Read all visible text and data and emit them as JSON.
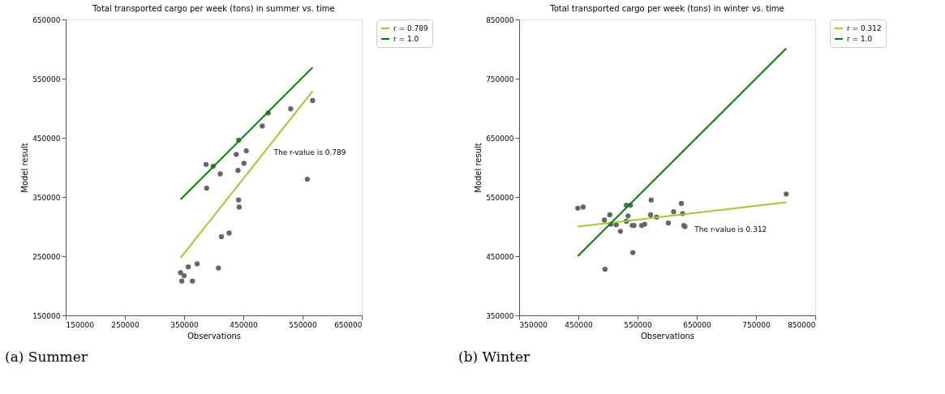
{
  "chart_data": [
    {
      "type": "scatter",
      "title": "Total transported cargo per week (tons) in summer vs. time",
      "xlabel": "Observations",
      "ylabel": "Model result",
      "xlim": [
        150000,
        650000
      ],
      "xticks": [
        150000,
        250000,
        350000,
        450000,
        550000,
        650000
      ],
      "ylim": [
        150000,
        650000
      ],
      "yticks": [
        150000,
        250000,
        350000,
        450000,
        550000,
        650000
      ],
      "grid": false,
      "legend": "right",
      "series": [
        {
          "marker": "circle",
          "color": "#666666",
          "x": [
            344000,
            350000,
            346000,
            357000,
            364000,
            372000,
            408000,
            413000,
            426000,
            387000,
            399000,
            388000,
            411000,
            438000,
            442000,
            455000,
            451000,
            441000,
            442000,
            443000,
            482000,
            492000,
            530000,
            567000,
            558000
          ],
          "values": [
            222000,
            217000,
            208000,
            232000,
            208000,
            237000,
            230000,
            283000,
            289000,
            405000,
            402000,
            365000,
            389000,
            422000,
            446000,
            428000,
            407000,
            395000,
            345000,
            333000,
            470000,
            492000,
            499000,
            513000,
            380000
          ]
        },
        {
          "type": "line",
          "name": "r = 0.789",
          "color": "#9acd32",
          "x": [
            344000,
            567000
          ],
          "values": [
            247000,
            529000
          ]
        },
        {
          "type": "line",
          "name": "r = 1.0",
          "color": "#008000",
          "x": [
            344000,
            567000
          ],
          "values": [
            346000,
            569000
          ]
        }
      ],
      "annotations": [
        "The r-value is 0.789",
        "(a) Summer"
      ]
    },
    {
      "type": "scatter",
      "title": "Total transported cargo per week (tons) in winter vs. time",
      "xlabel": "Observations",
      "ylabel": "Model result",
      "xlim": [
        350000,
        850000
      ],
      "xticks": [
        350000,
        450000,
        550000,
        650000,
        750000,
        850000
      ],
      "ylim": [
        350000,
        850000
      ],
      "yticks": [
        350000,
        450000,
        550000,
        650000,
        750000,
        850000
      ],
      "grid": false,
      "legend": "right",
      "series": [
        {
          "marker": "circle",
          "color": "#666666",
          "x": [
            449000,
            458000,
            494000,
            503000,
            505000,
            514000,
            521000,
            531000,
            538000,
            534000,
            531000,
            541000,
            544000,
            542000,
            495000,
            557000,
            562000,
            572000,
            573000,
            582000,
            602000,
            611000,
            624000,
            626000,
            628000,
            630000,
            801000
          ],
          "values": [
            531000,
            533000,
            511000,
            520000,
            504000,
            503000,
            492000,
            536000,
            536000,
            518000,
            509000,
            502000,
            502000,
            456000,
            428000,
            502000,
            504000,
            520000,
            545000,
            516000,
            506000,
            525000,
            539000,
            522000,
            502000,
            500000,
            555000
          ]
        },
        {
          "type": "line",
          "name": "r = 0.312",
          "color": "#9acd32",
          "x": [
            449000,
            801000
          ],
          "values": [
            500000,
            541000
          ]
        },
        {
          "type": "line",
          "name": "r = 1.0",
          "color": "#008000",
          "x": [
            449000,
            801000
          ],
          "values": [
            450000,
            801000
          ]
        }
      ],
      "annotations": [
        "The r-value is 0.312",
        "(b) Winter"
      ]
    }
  ]
}
